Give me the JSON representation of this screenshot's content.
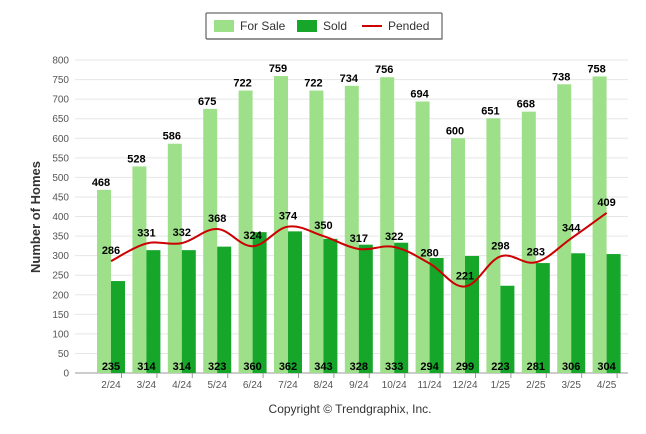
{
  "chart_data": {
    "type": "bar",
    "categories": [
      "2/24",
      "3/24",
      "4/24",
      "5/24",
      "6/24",
      "7/24",
      "8/24",
      "9/24",
      "10/24",
      "11/24",
      "12/24",
      "1/25",
      "2/25",
      "3/25",
      "4/25"
    ],
    "series": [
      {
        "name": "For Sale",
        "kind": "bar",
        "color": "#9ee08a",
        "values": [
          468,
          528,
          586,
          675,
          722,
          759,
          722,
          734,
          756,
          694,
          600,
          651,
          668,
          738,
          758
        ]
      },
      {
        "name": "Sold",
        "kind": "bar",
        "color": "#16a62a",
        "values": [
          235,
          314,
          314,
          323,
          360,
          362,
          343,
          328,
          333,
          294,
          299,
          223,
          281,
          306,
          304
        ]
      },
      {
        "name": "Pended",
        "kind": "line",
        "color": "#cc0000",
        "values": [
          286,
          331,
          332,
          368,
          324,
          374,
          350,
          317,
          322,
          280,
          221,
          298,
          283,
          344,
          409
        ]
      }
    ],
    "ylabel": "Number of Homes",
    "xlabel": "",
    "ylim": [
      0,
      800
    ],
    "yticks": [
      0,
      50,
      100,
      150,
      200,
      250,
      300,
      350,
      400,
      450,
      500,
      550,
      600,
      650,
      700,
      750,
      800
    ],
    "grid": true,
    "legend_position": "top-center"
  },
  "legend": {
    "items": [
      {
        "label": "For Sale",
        "color": "#9ee08a",
        "kind": "bar"
      },
      {
        "label": "Sold",
        "color": "#16a62a",
        "kind": "bar"
      },
      {
        "label": "Pended",
        "color": "#cc0000",
        "kind": "line"
      }
    ]
  },
  "copyright": "Copyright © Trendgraphix, Inc."
}
